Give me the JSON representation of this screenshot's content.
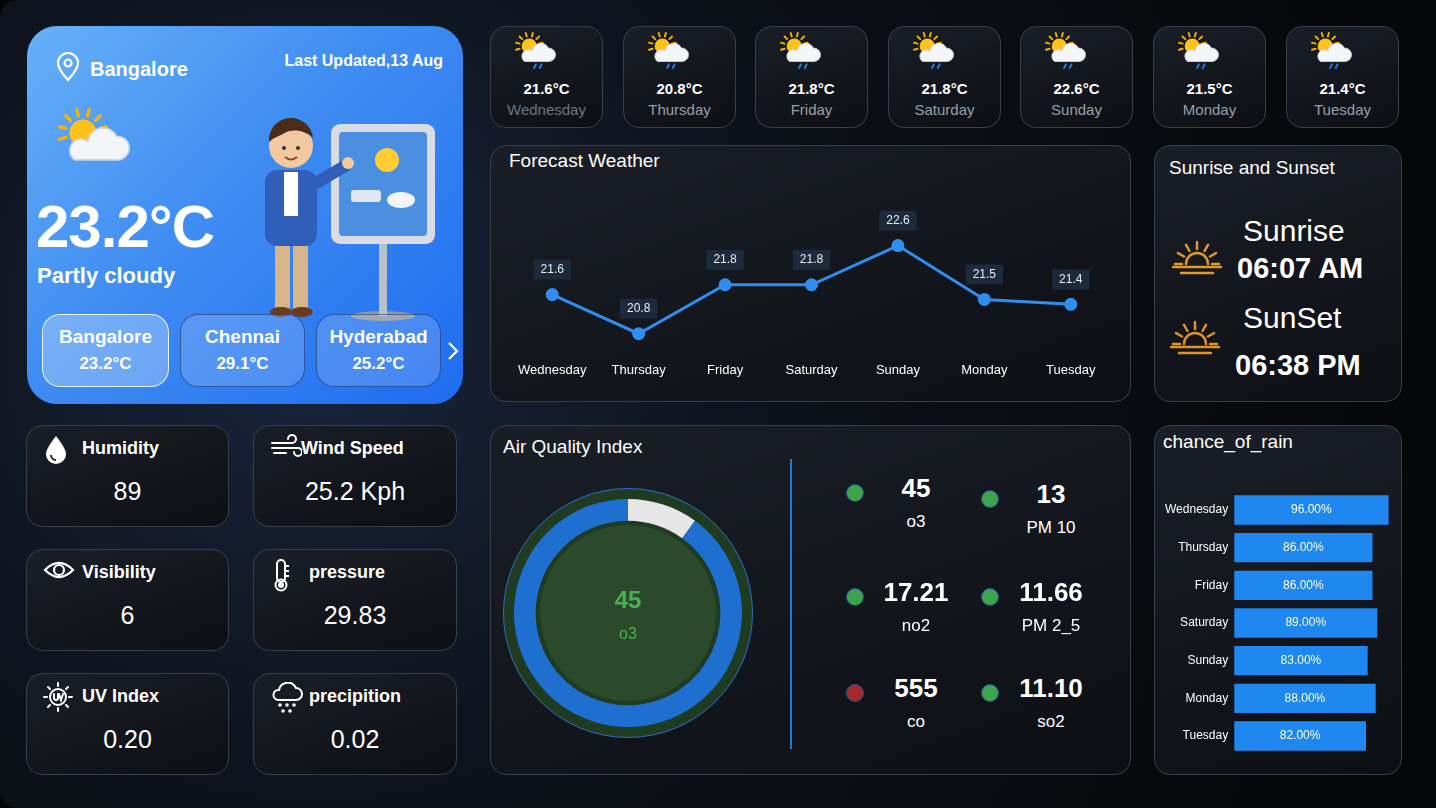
{
  "location": {
    "city": "Bangalore",
    "last_updated": "Last Updated,13 Aug",
    "temperature": "23.2°C",
    "condition": "Partly cloudy"
  },
  "cities": [
    {
      "name": "Bangalore",
      "temperature": "23.2°C"
    },
    {
      "name": "Chennai",
      "temperature": "29.1°C"
    },
    {
      "name": "Hyderabad",
      "temperature": "25.2°C"
    }
  ],
  "week": [
    {
      "day": "Wednesday",
      "temperature": "21.6°C"
    },
    {
      "day": "Thursday",
      "temperature": "20.8°C"
    },
    {
      "day": "Friday",
      "temperature": "21.8°C"
    },
    {
      "day": "Saturday",
      "temperature": "21.8°C"
    },
    {
      "day": "Sunday",
      "temperature": "22.6°C"
    },
    {
      "day": "Monday",
      "temperature": "21.5°C"
    },
    {
      "day": "Tuesday",
      "temperature": "21.4°C"
    }
  ],
  "metrics": [
    {
      "label": "Humidity",
      "value": "89"
    },
    {
      "label": "Wind Speed",
      "value": "25.2 Kph"
    },
    {
      "label": "Visibility",
      "value": "6"
    },
    {
      "label": "pressure",
      "value": "29.83"
    },
    {
      "label": "UV Index",
      "value": "0.20"
    },
    {
      "label": "precipition",
      "value": "0.02"
    }
  ],
  "sun": {
    "title": "Sunrise and Sunset",
    "sunrise_label": "Sunrise",
    "sunrise": "06:07 AM",
    "sunset_label": "SunSet",
    "sunset": "06:38 PM"
  },
  "air_quality": {
    "title": "Air Quality Index",
    "pollutants": [
      {
        "name": "o3",
        "value": "45",
        "color": "#3fa34d"
      },
      {
        "name": "PM 10",
        "value": "13",
        "color": "#3fa34d"
      },
      {
        "name": "no2",
        "value": "17.21",
        "color": "#3fa34d"
      },
      {
        "name": "PM 2_5",
        "value": "11.66",
        "color": "#3fa34d"
      },
      {
        "name": "co",
        "value": "555",
        "color": "#a52a2a"
      },
      {
        "name": "so2",
        "value": "11.10",
        "color": "#3fa34d"
      }
    ]
  },
  "chart_data": [
    {
      "type": "line",
      "title": "Forecast Weather",
      "categories": [
        "Wednesday",
        "Thursday",
        "Friday",
        "Saturday",
        "Sunday",
        "Monday",
        "Tuesday"
      ],
      "values": [
        21.6,
        20.8,
        21.8,
        21.8,
        22.6,
        21.5,
        21.4
      ],
      "color": "#2f8ef0",
      "marker": "circle",
      "data_labels": true,
      "tick_labels": "x",
      "grid": false
    },
    {
      "type": "doughnut",
      "label": "o3",
      "value": 45,
      "max": 50,
      "colors": [
        "#1f6fd1",
        "#e6e6e6"
      ]
    },
    {
      "type": "bar",
      "orientation": "horizontal",
      "title": "chance_of_rain",
      "categories": [
        "Wednesday",
        "Thursday",
        "Friday",
        "Saturday",
        "Sunday",
        "Monday",
        "Tuesday"
      ],
      "values": [
        96,
        86,
        86,
        89,
        83,
        88,
        82
      ],
      "value_labels": [
        "96.00%",
        "86.00%",
        "86.00%",
        "89.00%",
        "83.00%",
        "88.00%",
        "82.00%"
      ],
      "data_labels": true,
      "color": "#1e88f0",
      "xlim": [
        0,
        100
      ],
      "tick_labels": "y",
      "grid": false
    }
  ]
}
